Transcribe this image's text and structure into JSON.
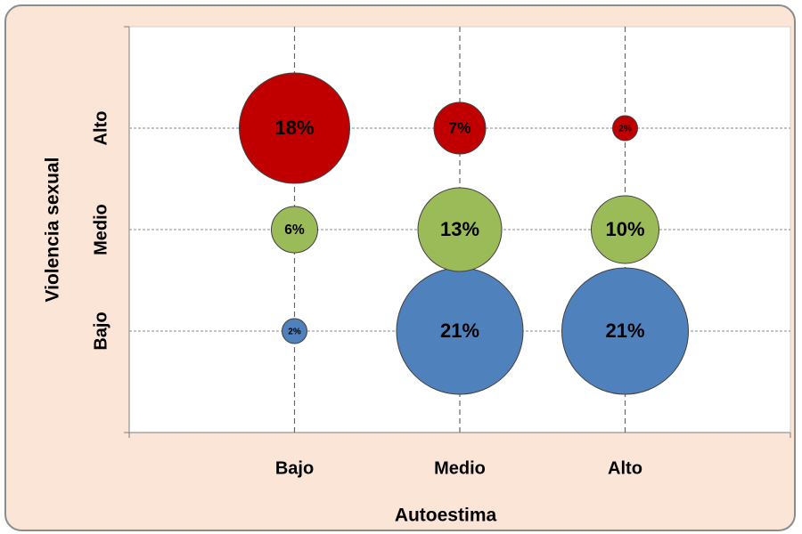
{
  "chart_data": {
    "type": "bubble",
    "xlabel": "Autoestima",
    "ylabel": "Violencia sexual",
    "x": [
      "Bajo",
      "Medio",
      "Alto"
    ],
    "y": [
      "Bajo",
      "Medio",
      "Alto"
    ],
    "series": [
      {
        "color": "#4f81bd",
        "values": [
          2,
          21,
          21
        ],
        "value_labels": [
          "2%",
          "21%",
          "21%"
        ]
      },
      {
        "color": "#9bbb59",
        "values": [
          6,
          13,
          10
        ],
        "value_labels": [
          "6%",
          "13%",
          "10%"
        ]
      },
      {
        "color": "#c00000",
        "values": [
          18,
          7,
          2
        ],
        "value_labels": [
          "18%",
          "7%",
          "2%"
        ]
      }
    ],
    "grid": true
  }
}
